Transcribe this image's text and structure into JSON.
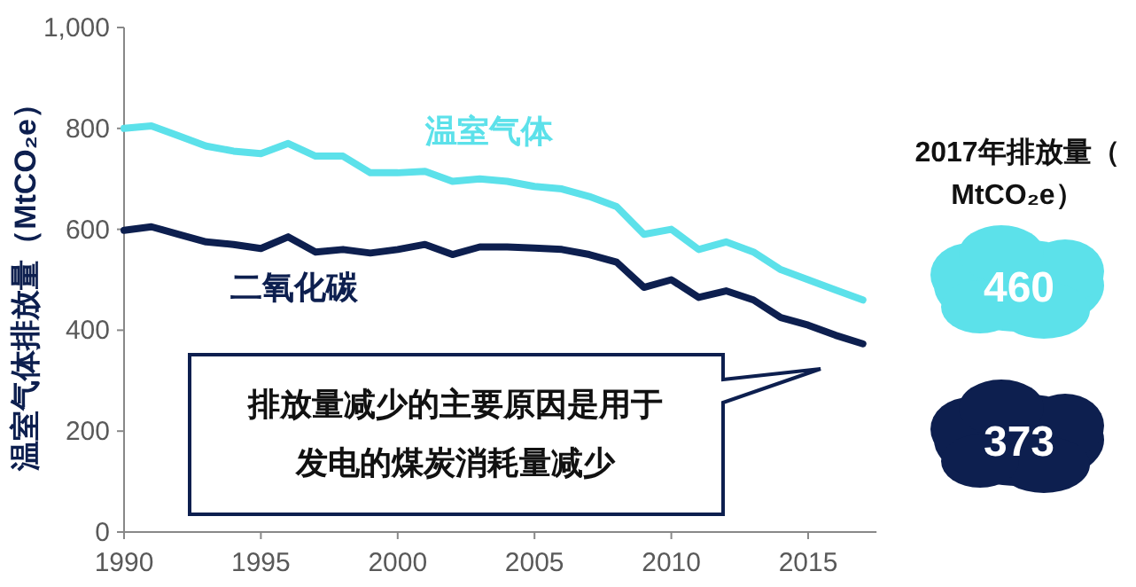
{
  "chart_data": {
    "type": "line",
    "ylabel": "温室气体排放量（MtCO₂e）",
    "x": [
      1990,
      1991,
      1992,
      1993,
      1994,
      1995,
      1996,
      1997,
      1998,
      1999,
      2000,
      2001,
      2002,
      2003,
      2004,
      2005,
      2006,
      2007,
      2008,
      2009,
      2010,
      2011,
      2012,
      2013,
      2014,
      2015,
      2016,
      2017
    ],
    "series": [
      {
        "name": "温室气体",
        "color": "#5ce1ea",
        "values": [
          800,
          805,
          785,
          765,
          755,
          750,
          770,
          745,
          745,
          712,
          712,
          715,
          695,
          700,
          695,
          685,
          680,
          665,
          645,
          590,
          600,
          560,
          575,
          555,
          520,
          500,
          480,
          460
        ]
      },
      {
        "name": "二氧化碳",
        "color": "#0d1f4f",
        "values": [
          598,
          605,
          590,
          575,
          570,
          562,
          585,
          555,
          560,
          553,
          560,
          570,
          550,
          565,
          565,
          563,
          560,
          550,
          535,
          485,
          500,
          465,
          478,
          460,
          425,
          410,
          390,
          373
        ]
      }
    ],
    "xlim": [
      1990,
      2017.5
    ],
    "ylim": [
      0,
      1000
    ],
    "xticks": [
      1990,
      1995,
      2000,
      2005,
      2010,
      2015
    ],
    "yticks": [
      0,
      200,
      400,
      600,
      800,
      {
        "value": 1000,
        "label": "1,000"
      }
    ],
    "grid": false,
    "marker": "none",
    "line_style": "solid",
    "annotations": [
      "排放量减少的主要原因是用于发电的煤炭消耗量减少",
      "2017年排放量（MtCO₂e）",
      "460",
      "373"
    ]
  }
}
